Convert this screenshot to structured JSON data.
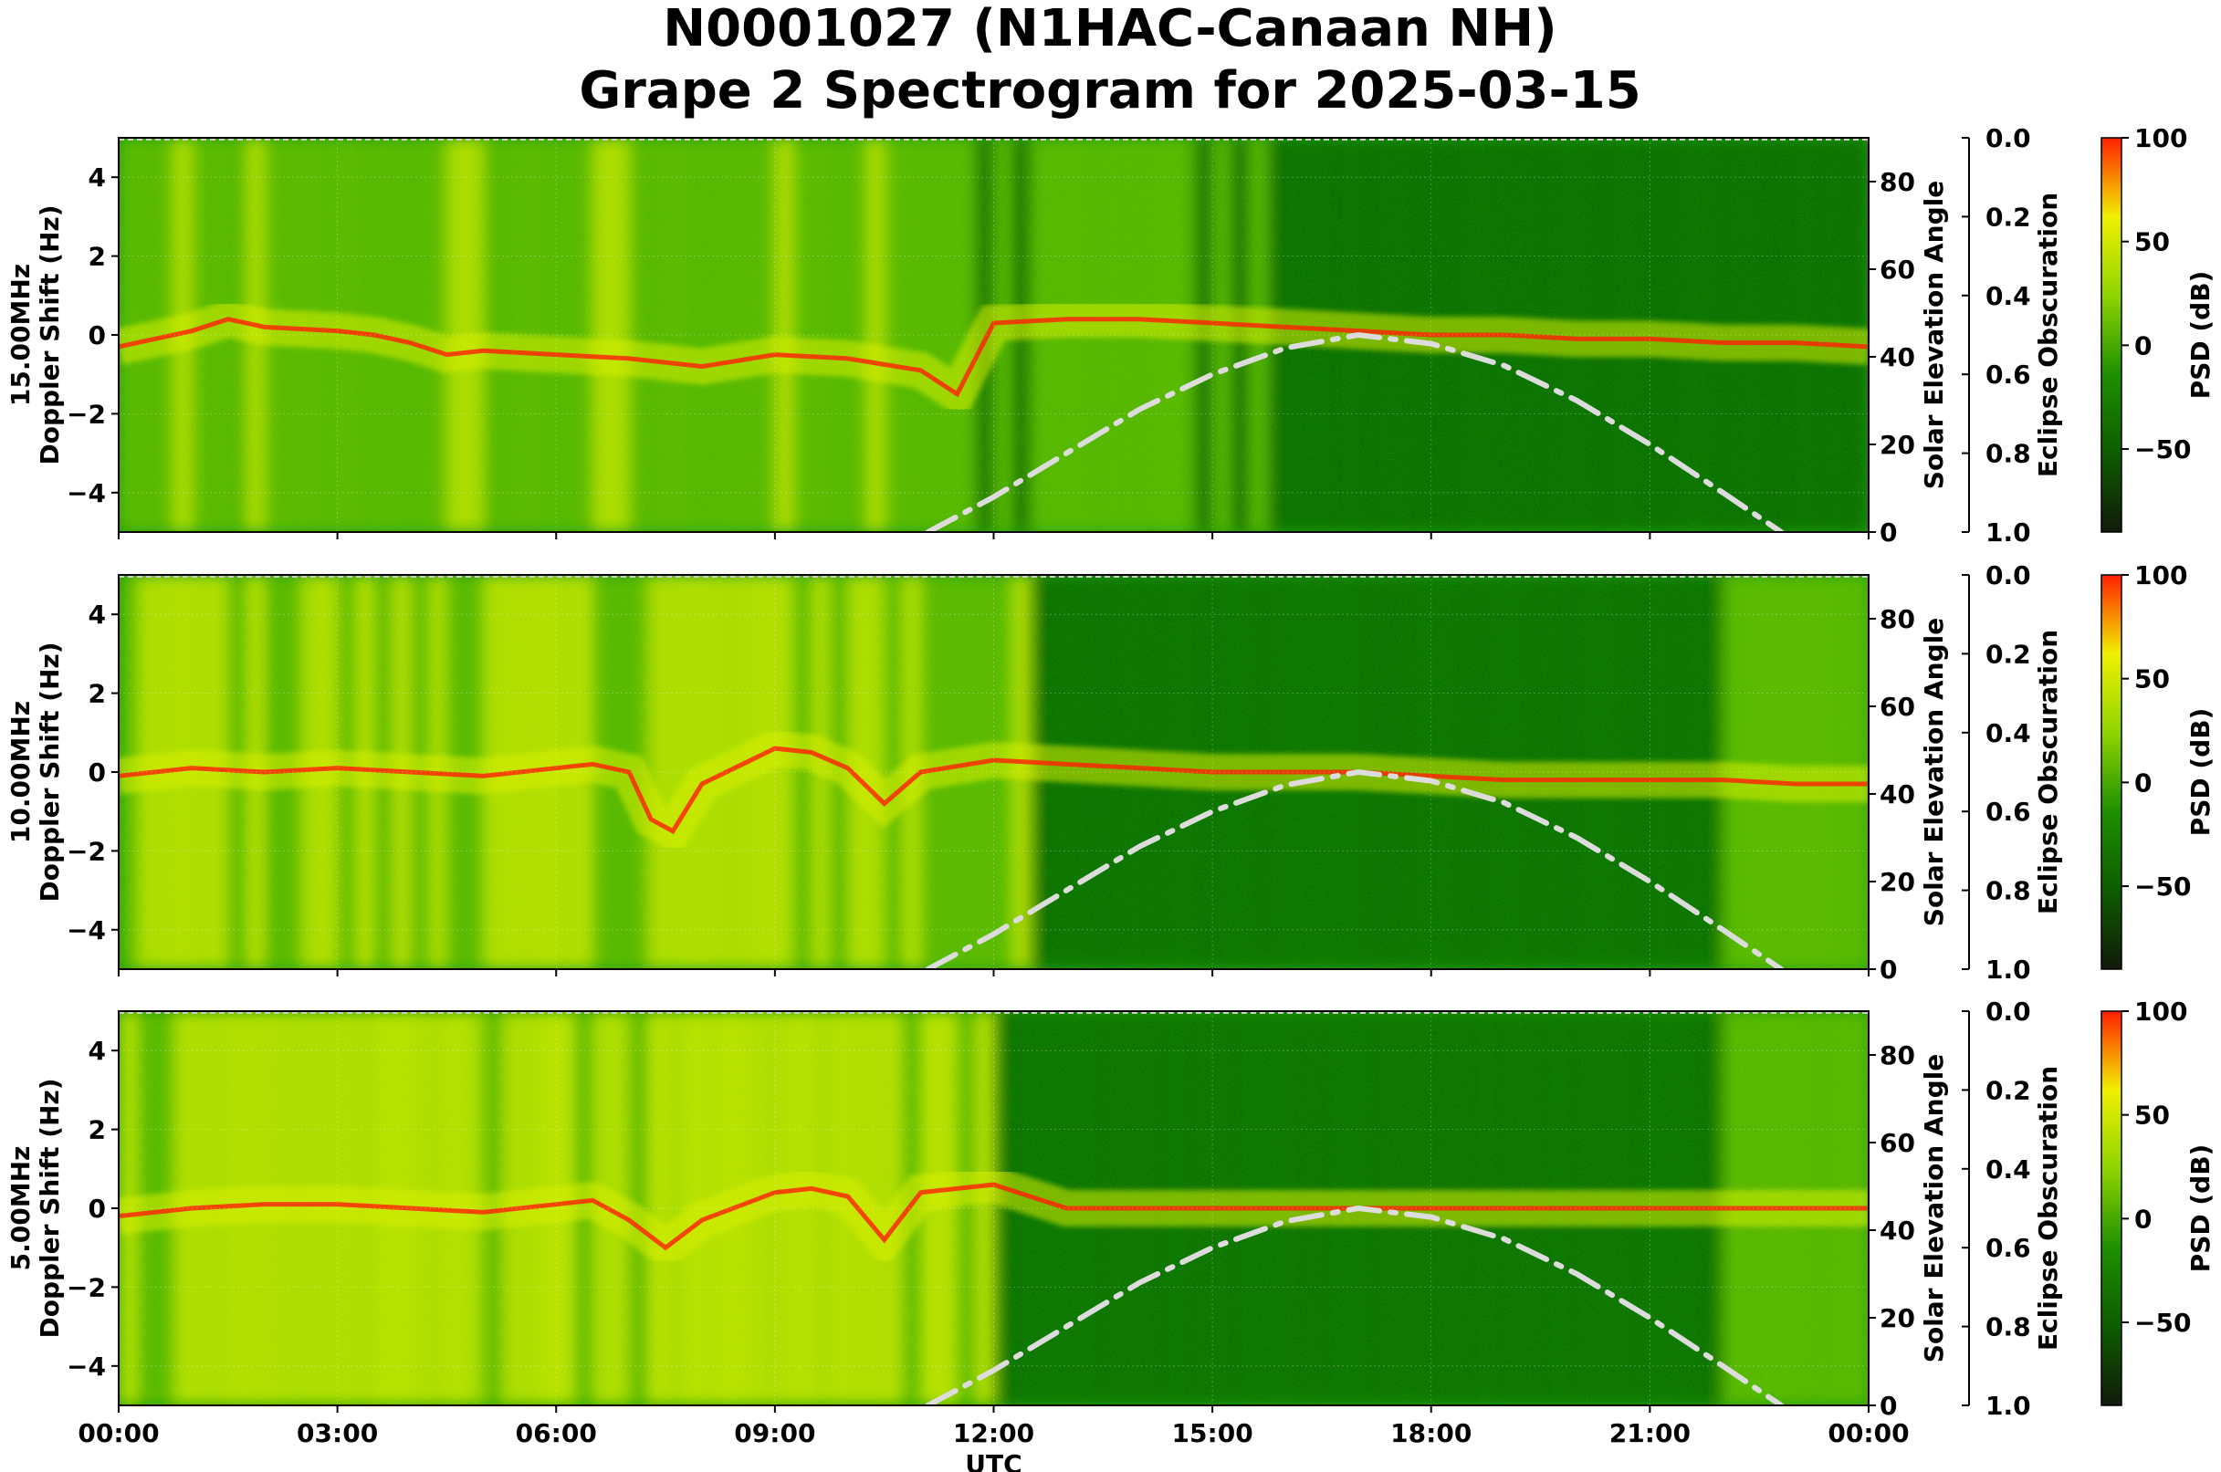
{
  "title": {
    "line1": "N0001027 (N1HAC-Canaan NH)",
    "line2": "Grape 2 Spectrogram for 2025-03-15"
  },
  "colors": {
    "spectrogram_low": "#0a5a00",
    "spectrogram_mid": "#1c9e00",
    "spectrogram_high": "#d8f000",
    "spectrogram_peak": "#ff1e00",
    "solar_curve": "#dcdcdc",
    "colorbar_stops": [
      "#111a0a",
      "#0e5c00",
      "#1f8f00",
      "#8fd400",
      "#f0f000",
      "#ff2000"
    ]
  },
  "chart_data": [
    {
      "type": "heatmap",
      "panel": "15.00MHz",
      "ylabel": "15.00MHz\nDoppler Shift (Hz)",
      "ylim": [
        -5,
        5
      ],
      "yticks": [
        4,
        2,
        0,
        -2,
        -4
      ],
      "y2label": "Solar Elevation Angle",
      "y2lim": [
        0,
        90
      ],
      "y2ticks": [
        80,
        60,
        40,
        20,
        0
      ],
      "y3label": "Eclipse Obscuration",
      "y3ticks": [
        "0.0",
        "0.2",
        "0.4",
        "0.6",
        "0.8",
        "1.0"
      ],
      "colorbar_label": "PSD (dB)",
      "colorbar_ticks": [
        100,
        50,
        0,
        -50
      ],
      "doppler_trace_hours": [
        0,
        1,
        1.5,
        2,
        3,
        3.5,
        4,
        4.5,
        5,
        6,
        7,
        8,
        9,
        10,
        11,
        11.5,
        12,
        13,
        14,
        15,
        16,
        17,
        18,
        19,
        20,
        21,
        22,
        23,
        24
      ],
      "doppler_trace_hz": [
        -0.3,
        0.1,
        0.4,
        0.2,
        0.1,
        0.0,
        -0.2,
        -0.5,
        -0.4,
        -0.5,
        -0.6,
        -0.8,
        -0.5,
        -0.6,
        -0.9,
        -1.5,
        0.3,
        0.4,
        0.4,
        0.3,
        0.2,
        0.1,
        0.0,
        0.0,
        -0.1,
        -0.1,
        -0.2,
        -0.2,
        -0.3
      ]
    },
    {
      "type": "heatmap",
      "panel": "10.00MHz",
      "ylabel": "10.00MHz\nDoppler Shift (Hz)",
      "ylim": [
        -5,
        5
      ],
      "yticks": [
        4,
        2,
        0,
        -2,
        -4
      ],
      "y2label": "Solar Elevation Angle",
      "y2lim": [
        0,
        90
      ],
      "y2ticks": [
        80,
        60,
        40,
        20,
        0
      ],
      "y3label": "Eclipse Obscuration",
      "y3ticks": [
        "0.0",
        "0.2",
        "0.4",
        "0.6",
        "0.8",
        "1.0"
      ],
      "colorbar_label": "PSD (dB)",
      "colorbar_ticks": [
        100,
        50,
        0,
        -50
      ],
      "doppler_trace_hours": [
        0,
        1,
        2,
        3,
        4,
        5,
        6,
        6.5,
        7,
        7.3,
        7.6,
        8,
        9,
        9.5,
        10,
        10.5,
        11,
        12,
        13,
        14,
        15,
        16,
        17,
        18,
        19,
        20,
        21,
        22,
        23,
        24
      ],
      "doppler_trace_hz": [
        -0.1,
        0.1,
        0.0,
        0.1,
        0.0,
        -0.1,
        0.1,
        0.2,
        0.0,
        -1.2,
        -1.5,
        -0.3,
        0.6,
        0.5,
        0.1,
        -0.8,
        0.0,
        0.3,
        0.2,
        0.1,
        0.0,
        0.0,
        0.0,
        -0.1,
        -0.2,
        -0.2,
        -0.2,
        -0.2,
        -0.3,
        -0.3
      ]
    },
    {
      "type": "heatmap",
      "panel": "5.00MHz",
      "ylabel": "5.00MHz\nDoppler Shift (Hz)",
      "ylim": [
        -5,
        5
      ],
      "yticks": [
        4,
        2,
        0,
        -2,
        -4
      ],
      "xlabel": "UTC",
      "xticks": [
        "00:00",
        "03:00",
        "06:00",
        "09:00",
        "12:00",
        "15:00",
        "18:00",
        "21:00",
        "00:00"
      ],
      "y2label": "Solar Elevation Angle",
      "y2lim": [
        0,
        90
      ],
      "y2ticks": [
        80,
        60,
        40,
        20,
        0
      ],
      "y3label": "Eclipse Obscuration",
      "y3ticks": [
        "0.0",
        "0.2",
        "0.4",
        "0.6",
        "0.8",
        "1.0"
      ],
      "colorbar_label": "PSD (dB)",
      "colorbar_ticks": [
        100,
        50,
        0,
        -50
      ],
      "doppler_trace_hours": [
        0,
        1,
        2,
        3,
        4,
        5,
        6,
        6.5,
        7,
        7.5,
        8,
        9,
        9.5,
        10,
        10.5,
        11,
        12,
        13,
        16,
        20,
        22,
        24
      ],
      "doppler_trace_hz": [
        -0.2,
        0.0,
        0.1,
        0.1,
        0.0,
        -0.1,
        0.1,
        0.2,
        -0.3,
        -1.0,
        -0.3,
        0.4,
        0.5,
        0.3,
        -0.8,
        0.4,
        0.6,
        0.0,
        0.0,
        0.0,
        0.0,
        0.0
      ]
    }
  ],
  "solar_elevation": {
    "name": "Solar Elevation Angle",
    "hours": [
      11.1,
      12,
      13,
      14,
      15,
      16,
      17,
      18,
      19,
      20,
      21,
      22,
      22.8
    ],
    "degrees": [
      0,
      8,
      18,
      28,
      36,
      42,
      45,
      43,
      38,
      30,
      20,
      9,
      0
    ]
  }
}
